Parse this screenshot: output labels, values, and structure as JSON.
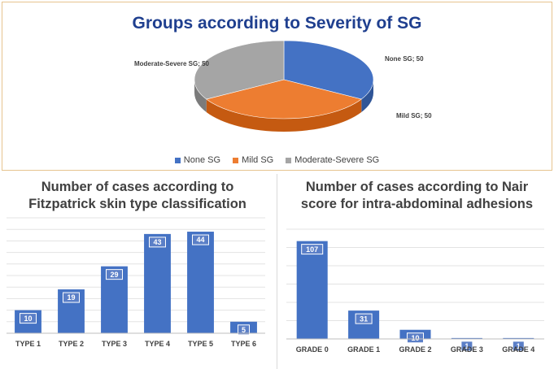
{
  "chart_data": [
    {
      "type": "pie",
      "title": "Groups according to Severity of SG",
      "categories": [
        "None SG",
        "Mild SG",
        "Moderate-Severe SG"
      ],
      "values": [
        50,
        50,
        50
      ],
      "slice_labels": [
        "None SG; 50",
        "Mild SG; 50",
        "Moderate-Severe SG; 50"
      ],
      "colors": [
        "#4472c4",
        "#ed7d31",
        "#a5a5a5"
      ],
      "side_colors": [
        "#2f5597",
        "#c55a11",
        "#7b7b7b"
      ],
      "legend": "bottom"
    },
    {
      "type": "bar",
      "title": "Number of cases according to Fitzpatrick skin type classification",
      "title_lines": [
        "Number of cases according to",
        "Fitzpatrick skin type classification"
      ],
      "categories": [
        "TYPE 1",
        "TYPE 2",
        "TYPE 3",
        "TYPE 4",
        "TYPE 5",
        "TYPE 6"
      ],
      "values": [
        10,
        19,
        29,
        43,
        44,
        5
      ],
      "ylim": [
        0,
        50
      ],
      "grid": true,
      "color": "#4472c4"
    },
    {
      "type": "bar",
      "title": "Number of cases according to Nair score for intra-abdominal adhesions",
      "title_lines": [
        "Number of cases according to Nair",
        "score for intra-abdominal adhesions"
      ],
      "categories": [
        "GRADE 0",
        "GRADE 1",
        "GRADE 2",
        "GRADE 3",
        "GRADE 4"
      ],
      "values": [
        107,
        31,
        10,
        1,
        1
      ],
      "ylim": [
        0,
        120
      ],
      "grid": true,
      "color": "#4472c4"
    }
  ]
}
